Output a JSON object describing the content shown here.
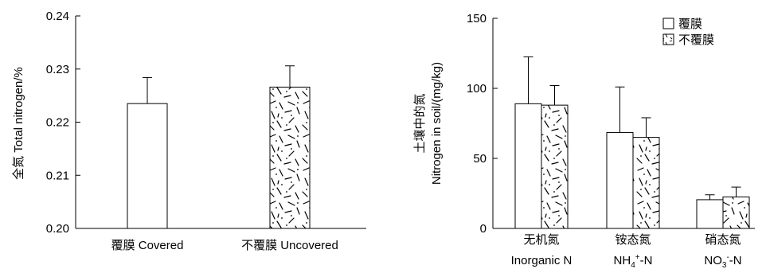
{
  "chart_data": [
    {
      "type": "bar",
      "title": "",
      "ylabel": "全氮 Total nitrogen/%",
      "xlabel": "",
      "ylim": [
        0.2,
        0.24
      ],
      "yticks": [
        "0.20",
        "0.21",
        "0.22",
        "0.23",
        "0.24"
      ],
      "categories": [
        "覆膜 Covered",
        "不覆膜 Uncovered"
      ],
      "series": [
        {
          "values": [
            0.2235,
            0.2266
          ],
          "errors": [
            0.0049,
            0.004
          ],
          "patterns": [
            "plain",
            "hatched"
          ]
        }
      ]
    },
    {
      "type": "bar",
      "title": "",
      "ylabel_line1": "土壤中的氮",
      "ylabel_line2": "Nitrogen in soil/(mg/kg)",
      "xlabel": "",
      "ylim": [
        0,
        150
      ],
      "yticks": [
        "0",
        "50",
        "100",
        "150"
      ],
      "categories": [
        {
          "cn": "无机氮",
          "en": "Inorganic N"
        },
        {
          "cn": "铵态氮",
          "en_prefix": "NH",
          "en_sub": "4",
          "en_sup": "+",
          "en_suffix": "-N"
        },
        {
          "cn": "硝态氮",
          "en_prefix": "NO",
          "en_sub": "3",
          "en_sup": "-",
          "en_suffix": "-N"
        }
      ],
      "legend": [
        "覆膜",
        "不覆膜"
      ],
      "legend_position": "top-right",
      "series": [
        {
          "name": "覆膜",
          "values": [
            89,
            68.5,
            20.5
          ],
          "errors": [
            33.5,
            32.5,
            3.5
          ]
        },
        {
          "name": "不覆膜",
          "values": [
            88,
            65,
            22.5
          ],
          "errors": [
            14,
            14,
            7
          ]
        }
      ]
    }
  ]
}
